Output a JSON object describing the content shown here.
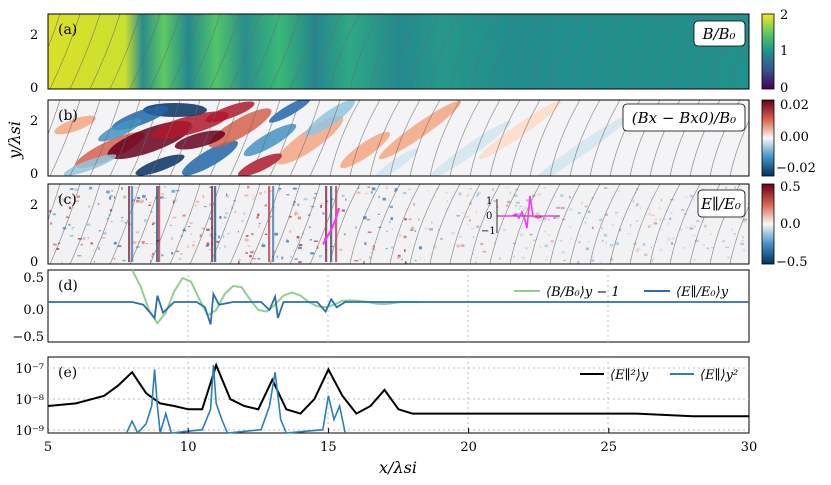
{
  "chart_data": [
    {
      "panel": "(a)",
      "type": "heatmap",
      "title": "B/B₀",
      "ylabel": "y/λsi",
      "ylim": [
        0,
        2.6
      ],
      "yticks": [
        "0",
        "2"
      ],
      "colorbar": {
        "colors": [
          "#440154",
          "#3b528b",
          "#21918c",
          "#5ec962",
          "#fde725"
        ],
        "ticks": [
          "0",
          "1",
          "2"
        ],
        "range": [
          0,
          2
        ]
      }
    },
    {
      "panel": "(b)",
      "type": "heatmap",
      "title": "(Bx − Bx0)/B₀",
      "yticks": [
        "0",
        "2"
      ],
      "colorbar": {
        "colors": [
          "#053061",
          "#4393c3",
          "#f7f7f7",
          "#d6604d",
          "#67001f"
        ],
        "ticks": [
          "0.02",
          "0.00",
          "−0.02"
        ],
        "range": [
          -0.025,
          0.025
        ]
      }
    },
    {
      "panel": "(c)",
      "type": "heatmap",
      "title": "E∥/E₀",
      "yticks": [
        "0",
        "2"
      ],
      "inset": {
        "yticks": [
          "1",
          "0",
          "−1"
        ]
      },
      "colorbar": {
        "colors": [
          "#053061",
          "#4393c3",
          "#f7f7f7",
          "#d6604d",
          "#67001f"
        ],
        "ticks": [
          "0.5",
          "0.0",
          "−0.5"
        ],
        "range": [
          -0.5,
          0.5
        ]
      }
    },
    {
      "panel": "(d)",
      "type": "line",
      "ylim": [
        -0.75,
        0.6
      ],
      "yticks": [
        "0.5",
        "0.0",
        "−0.5"
      ],
      "series": [
        {
          "name": "⟨B/B₀⟩y − 1",
          "color": "#90d18d",
          "x": [
            8.0,
            8.3,
            8.6,
            8.9,
            9.2,
            9.5,
            9.8,
            10.1,
            10.4,
            10.7,
            11.0,
            11.3,
            11.6,
            11.9,
            12.2,
            12.5,
            12.8,
            13.1,
            13.4,
            13.7,
            14.0,
            14.3,
            14.6,
            14.9,
            15.2,
            15.5,
            15.8,
            16.1,
            16.4,
            16.7,
            17.0,
            17.3,
            17.6,
            17.9,
            18.2
          ],
          "y": [
            0.6,
            0.3,
            -0.15,
            -0.4,
            -0.2,
            0.2,
            0.45,
            0.38,
            0.05,
            -0.25,
            -0.15,
            0.15,
            0.3,
            0.28,
            0.05,
            -0.15,
            -0.18,
            -0.05,
            0.12,
            0.18,
            0.12,
            0.0,
            -0.08,
            -0.1,
            -0.05,
            0.02,
            0.03,
            0.02,
            0.0,
            -0.03,
            -0.04,
            -0.02,
            0.0,
            0.0,
            0.0
          ]
        },
        {
          "name": "⟨E∥/E₀⟩y",
          "color": "#2c6fb0",
          "x": [
            5.0,
            8.0,
            8.4,
            8.8,
            8.9,
            9.1,
            9.5,
            10.3,
            10.6,
            10.8,
            10.9,
            11.1,
            11.6,
            12.6,
            12.9,
            13.1,
            13.2,
            13.4,
            14.6,
            14.9,
            15.1,
            15.3,
            15.6,
            16.5,
            30.0
          ],
          "y": [
            0.0,
            0.0,
            -0.05,
            -0.3,
            0.12,
            -0.2,
            0.0,
            0.0,
            -0.1,
            -0.42,
            0.15,
            -0.05,
            0.0,
            0.0,
            -0.15,
            0.1,
            -0.3,
            0.0,
            0.0,
            -0.18,
            0.05,
            -0.1,
            0.0,
            0.0,
            0.0
          ]
        }
      ]
    },
    {
      "panel": "(e)",
      "type": "line",
      "yscale": "log",
      "ylim": [
        8e-10,
        1.4e-07
      ],
      "yticks": [
        "10⁻⁷",
        "10⁻⁸",
        "10⁻⁹"
      ],
      "series": [
        {
          "name": "⟨E∥²⟩y",
          "color": "#000000",
          "x": [
            5.0,
            6.0,
            7.0,
            7.5,
            8.0,
            8.5,
            9.0,
            9.5,
            10.0,
            10.5,
            11.0,
            11.5,
            12.0,
            12.5,
            13.0,
            13.5,
            14.0,
            14.5,
            15.0,
            15.5,
            16.0,
            16.5,
            17.0,
            17.5,
            18.0,
            19.0,
            20.0,
            22.0,
            24.0,
            26.0,
            28.0,
            30.0
          ],
          "y": [
            5e-09,
            6e-09,
            1e-08,
            2e-08,
            5e-08,
            1.2e-08,
            6e-09,
            5e-09,
            4e-09,
            4e-09,
            8e-08,
            8e-09,
            5e-09,
            4e-09,
            3e-08,
            4e-09,
            3e-09,
            8e-09,
            6e-08,
            1e-08,
            3e-09,
            5e-09,
            1.5e-08,
            4e-09,
            3e-09,
            3e-09,
            3e-09,
            3e-09,
            3e-09,
            3e-09,
            2.5e-09,
            2.5e-09
          ]
        },
        {
          "name": "⟨E∥⟩y²",
          "color": "#2c7fb8",
          "x": [
            7.8,
            8.0,
            8.2,
            8.5,
            8.7,
            8.8,
            8.9,
            9.0,
            9.2,
            9.4,
            10.5,
            10.8,
            10.9,
            11.0,
            11.2,
            11.4,
            12.6,
            12.9,
            13.1,
            13.3,
            13.5,
            14.8,
            15.0,
            15.2,
            15.4,
            15.6
          ],
          "y": [
            8e-10,
            1.8e-09,
            8e-10,
            1.5e-09,
            5e-09,
            6e-08,
            5e-09,
            8e-10,
            3e-09,
            8e-10,
            1e-09,
            4e-09,
            8e-08,
            6e-09,
            2e-09,
            8e-10,
            1e-09,
            5e-09,
            5e-08,
            2e-09,
            8e-10,
            1e-09,
            1e-08,
            2e-09,
            5e-09,
            8e-10
          ]
        }
      ]
    }
  ],
  "x_axis": {
    "label": "x/λsi",
    "ticks": [
      5,
      10,
      15,
      20,
      25,
      30
    ],
    "range": [
      5,
      30
    ]
  }
}
